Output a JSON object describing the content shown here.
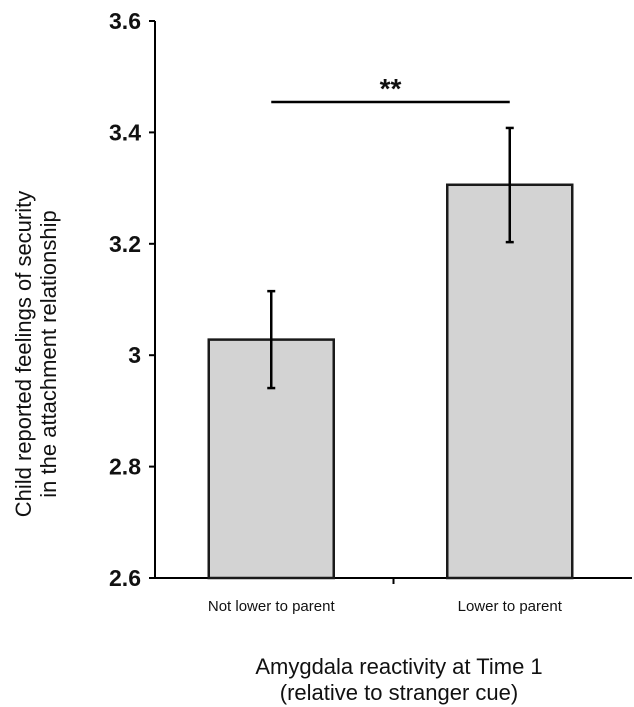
{
  "chart_data": {
    "type": "bar",
    "categories": [
      "Not lower to parent",
      "Lower to parent"
    ],
    "values": [
      3.028,
      3.306
    ],
    "error": [
      [
        2.941,
        3.115
      ],
      [
        3.203,
        3.408
      ]
    ],
    "ylim": [
      2.6,
      3.6
    ],
    "yticks": [
      "2.6",
      "2.8",
      "3",
      "3.2",
      "3.4",
      "3.6"
    ],
    "ytick_values": [
      2.6,
      2.8,
      3.0,
      3.2,
      3.4,
      3.6
    ],
    "ylabel_line1": "Child reported feelings of security",
    "ylabel_line2": "in the attachment relationship",
    "xlabel_line1": "Amygdala reactivity at Time 1",
    "xlabel_line2": "(relative to stranger cue)",
    "significance": {
      "label": "**",
      "between": [
        0,
        1
      ]
    },
    "bar_color": "#d3d3d3",
    "bar_stroke": "#1a1a1a",
    "grid": false
  }
}
